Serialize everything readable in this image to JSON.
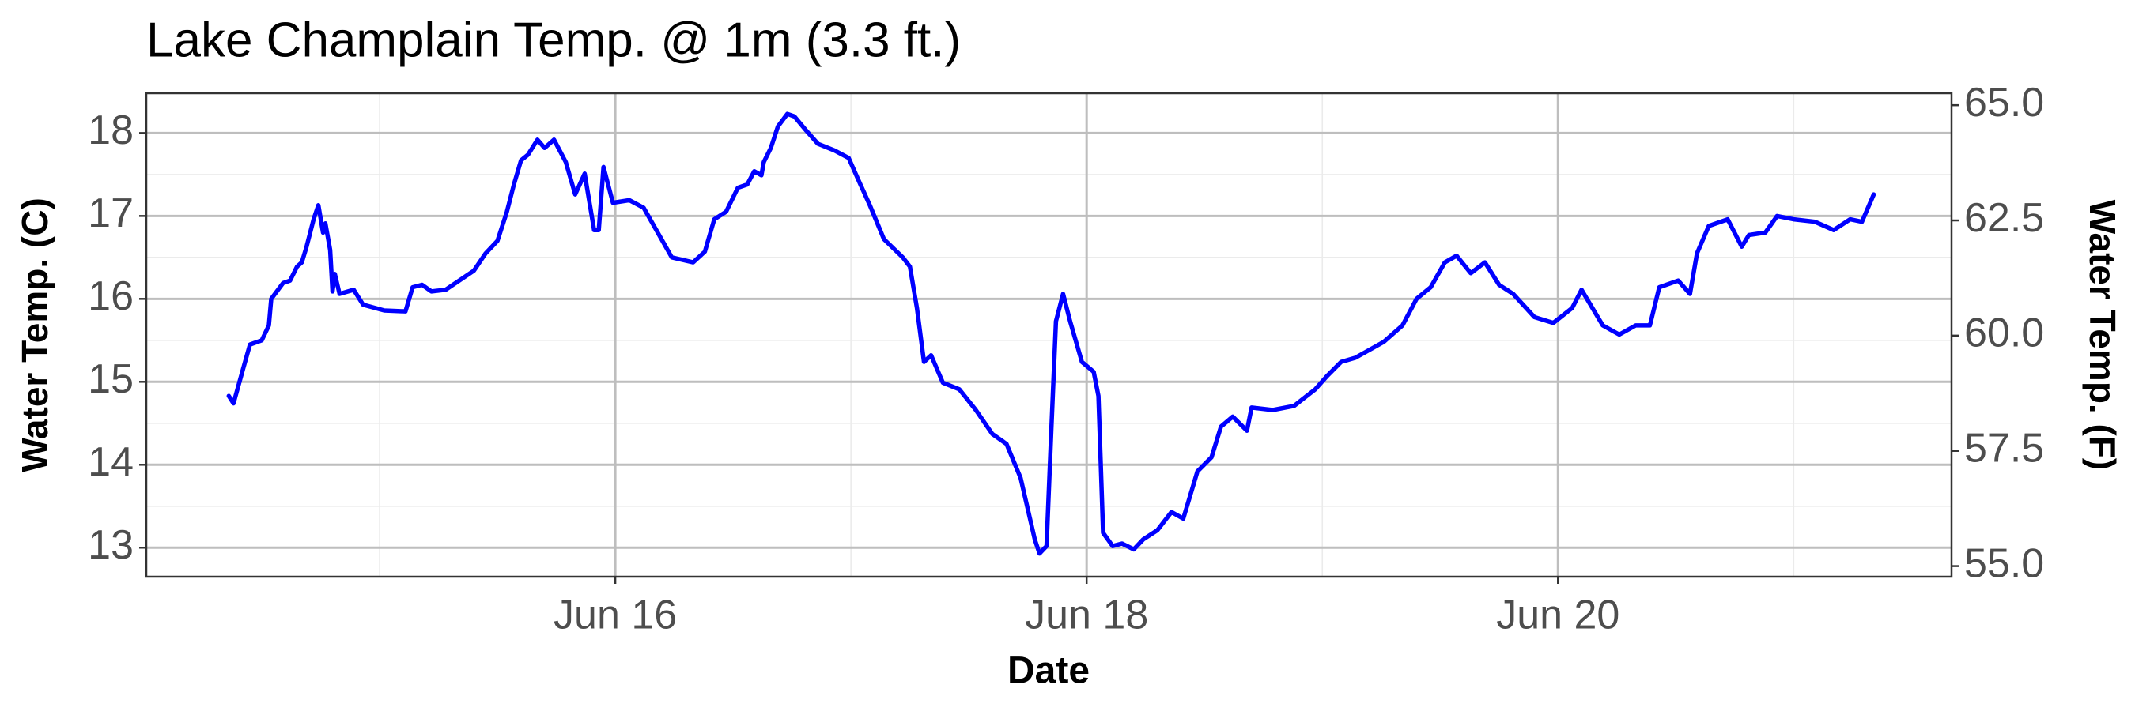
{
  "chart_data": {
    "type": "line",
    "title": "Lake Champlain Temp. @ 1m (3.3 ft.)",
    "xlabel": "Date",
    "ylabel": "Water Temp. (C)",
    "y2label": "Water Temp. (F)",
    "x": [
      14.36,
      14.38,
      14.42,
      14.45,
      14.5,
      14.53,
      14.54,
      14.59,
      14.62,
      14.65,
      14.67,
      14.69,
      14.72,
      14.74,
      14.76,
      14.77,
      14.79,
      14.8,
      14.81,
      14.83,
      14.89,
      14.93,
      15.02,
      15.11,
      15.14,
      15.18,
      15.22,
      15.28,
      15.4,
      15.45,
      15.5,
      15.54,
      15.57,
      15.6,
      15.63,
      15.67,
      15.7,
      15.74,
      15.79,
      15.83,
      15.87,
      15.91,
      15.93,
      15.95,
      15.99,
      16.06,
      16.12,
      16.18,
      16.24,
      16.33,
      16.38,
      16.42,
      16.47,
      16.52,
      16.56,
      16.59,
      16.62,
      16.63,
      16.66,
      16.69,
      16.73,
      16.76,
      16.81,
      16.86,
      16.93,
      16.99,
      17.04,
      17.08,
      17.14,
      17.22,
      17.25,
      17.28,
      17.31,
      17.34,
      17.39,
      17.46,
      17.53,
      17.6,
      17.66,
      17.72,
      17.78,
      17.8,
      17.83,
      17.85,
      17.87,
      17.9,
      17.93,
      17.98,
      18.03,
      18.05,
      18.07,
      18.11,
      18.15,
      18.2,
      18.24,
      18.3,
      18.36,
      18.41,
      18.47,
      18.53,
      18.57,
      18.62,
      18.68,
      18.7,
      18.79,
      18.88,
      18.97,
      19.02,
      19.08,
      19.14,
      19.26,
      19.34,
      19.4,
      19.46,
      19.52,
      19.57,
      19.63,
      19.69,
      19.75,
      19.81,
      19.9,
      19.98,
      20.06,
      20.1,
      20.19,
      20.26,
      20.33,
      20.39,
      20.43,
      20.51,
      20.56,
      20.59,
      20.64,
      20.72,
      20.78,
      20.81,
      20.88,
      20.93,
      21.0,
      21.09,
      21.17,
      21.24,
      21.29,
      21.34
    ],
    "series": [
      {
        "name": "Water Temp. (C)",
        "color": "#0000ff",
        "values": [
          14.83,
          14.74,
          15.15,
          15.45,
          15.5,
          15.68,
          16.0,
          16.19,
          16.22,
          16.39,
          16.44,
          16.63,
          16.96,
          17.13,
          16.8,
          16.91,
          16.59,
          16.09,
          16.3,
          16.06,
          16.11,
          15.93,
          15.86,
          15.85,
          16.14,
          16.17,
          16.09,
          16.11,
          16.34,
          16.55,
          16.7,
          17.05,
          17.38,
          17.67,
          17.74,
          17.92,
          17.82,
          17.92,
          17.65,
          17.26,
          17.51,
          16.83,
          16.83,
          17.59,
          17.16,
          17.19,
          17.1,
          16.8,
          16.5,
          16.44,
          16.57,
          16.96,
          17.05,
          17.34,
          17.38,
          17.54,
          17.49,
          17.65,
          17.82,
          18.08,
          18.23,
          18.2,
          18.03,
          17.87,
          17.79,
          17.7,
          17.38,
          17.13,
          16.72,
          16.5,
          16.39,
          15.89,
          15.24,
          15.32,
          14.99,
          14.91,
          14.66,
          14.37,
          14.25,
          13.84,
          13.1,
          12.93,
          13.02,
          14.41,
          15.73,
          16.06,
          15.73,
          15.24,
          15.12,
          14.83,
          13.18,
          13.02,
          13.05,
          12.98,
          13.1,
          13.21,
          13.43,
          13.35,
          13.92,
          14.09,
          14.46,
          14.58,
          14.41,
          14.69,
          14.66,
          14.71,
          14.91,
          15.07,
          15.24,
          15.29,
          15.48,
          15.68,
          16.0,
          16.14,
          16.44,
          16.52,
          16.31,
          16.44,
          16.17,
          16.06,
          15.78,
          15.71,
          15.89,
          16.11,
          15.68,
          15.57,
          15.68,
          15.68,
          16.14,
          16.22,
          16.06,
          16.55,
          16.88,
          16.96,
          16.63,
          16.77,
          16.8,
          17.0,
          16.96,
          16.93,
          16.83,
          16.96,
          16.93,
          17.26
        ]
      }
    ],
    "xlim": [
      14.01,
      21.67
    ],
    "xticks": [
      {
        "value": 16,
        "label": "Jun 16"
      },
      {
        "value": 18,
        "label": "Jun 18"
      },
      {
        "value": 20,
        "label": "Jun 20"
      }
    ],
    "ylim": [
      12.65,
      18.48
    ],
    "yticks": [
      13,
      14,
      15,
      16,
      17,
      18
    ],
    "y2lim": [
      54.77,
      65.26
    ],
    "y2ticks": [
      {
        "value": 55,
        "label": "55.0"
      },
      {
        "value": 57.5,
        "label": "57.5"
      },
      {
        "value": 60,
        "label": "60.0"
      },
      {
        "value": 62.5,
        "label": "62.5"
      },
      {
        "value": 65,
        "label": "65.0"
      }
    ],
    "grid": true,
    "minor_grid": true
  }
}
